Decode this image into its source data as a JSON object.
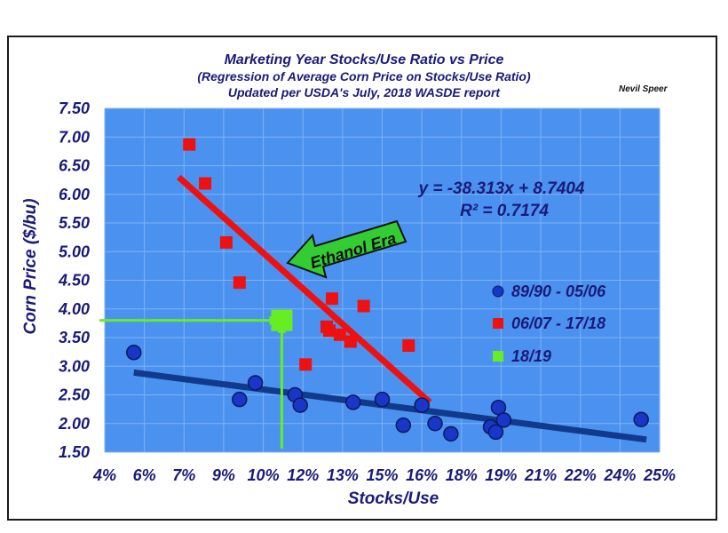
{
  "chart_data": {
    "type": "scatter",
    "title": "Marketing Year Stocks/Use Ratio vs Price",
    "subtitle": "(Regression of Average Corn Price on Stocks/Use Ratio)",
    "subtitle2": "Updated per USDA's July, 2018 WASDE report",
    "credit": "Nevil Speer",
    "xlabel": "Stocks/Use",
    "ylabel": "Corn Price ($/bu)",
    "x_tick_labels": [
      "4%",
      "6%",
      "7%",
      "9%",
      "10%",
      "12%",
      "13%",
      "15%",
      "16%",
      "18%",
      "19%",
      "21%",
      "22%",
      "24%",
      "25%"
    ],
    "y_ticks": [
      "1.50",
      "2.00",
      "2.50",
      "3.00",
      "3.50",
      "4.00",
      "4.50",
      "5.00",
      "5.50",
      "6.00",
      "6.50",
      "7.00",
      "7.50"
    ],
    "xlim": [
      4.5,
      25.5
    ],
    "ylim": [
      1.5,
      7.5
    ],
    "grid": true,
    "legend_position": "right",
    "series": [
      {
        "name": "89/90 - 05/06",
        "marker": "circle",
        "color": "#1a36c8",
        "points": [
          [
            5.6,
            3.24
          ],
          [
            9.6,
            2.42
          ],
          [
            10.2,
            2.71
          ],
          [
            11.7,
            2.5
          ],
          [
            11.9,
            2.32
          ],
          [
            13.9,
            2.37
          ],
          [
            15.0,
            2.42
          ],
          [
            15.8,
            1.97
          ],
          [
            16.5,
            2.32
          ],
          [
            17.0,
            2.0
          ],
          [
            17.6,
            1.82
          ],
          [
            19.1,
            1.94
          ],
          [
            19.3,
            1.85
          ],
          [
            19.4,
            2.28
          ],
          [
            19.6,
            2.06
          ],
          [
            24.8,
            2.07
          ]
        ]
      },
      {
        "name": "06/07 - 17/18",
        "marker": "square",
        "color": "#ee1111",
        "points": [
          [
            7.7,
            6.87
          ],
          [
            8.3,
            6.19
          ],
          [
            9.1,
            5.16
          ],
          [
            9.6,
            4.46
          ],
          [
            12.1,
            3.03
          ],
          [
            12.9,
            3.69
          ],
          [
            13.0,
            3.62
          ],
          [
            13.1,
            4.18
          ],
          [
            13.4,
            3.55
          ],
          [
            13.8,
            3.43
          ],
          [
            14.3,
            4.05
          ],
          [
            16.0,
            3.36
          ]
        ]
      },
      {
        "name": "18/19",
        "marker": "square",
        "color": "#66ee22",
        "points": [
          [
            11.2,
            3.8
          ]
        ]
      }
    ],
    "trend_lines": [
      {
        "name": "ethanol-era-trend",
        "color": "#ee1111",
        "from": [
          7.3,
          6.3
        ],
        "to": [
          16.8,
          2.37
        ]
      },
      {
        "name": "pre-ethanol-trend",
        "color": "#123a8c",
        "from": [
          5.6,
          2.89
        ],
        "to": [
          25.0,
          1.72
        ]
      }
    ],
    "guide_lines": {
      "color": "#66ee22",
      "x": 11.2,
      "y": 3.8
    },
    "equation": "y = -38.313x + 8.7404",
    "r_squared": "R² = 0.7174",
    "annotation": "Ethanol Era",
    "colors": {
      "plot_bg": "#4b92f0",
      "grid": "#7fb2f4",
      "arrow_fill": "#33cc33",
      "text": "#1a1a7a"
    }
  }
}
